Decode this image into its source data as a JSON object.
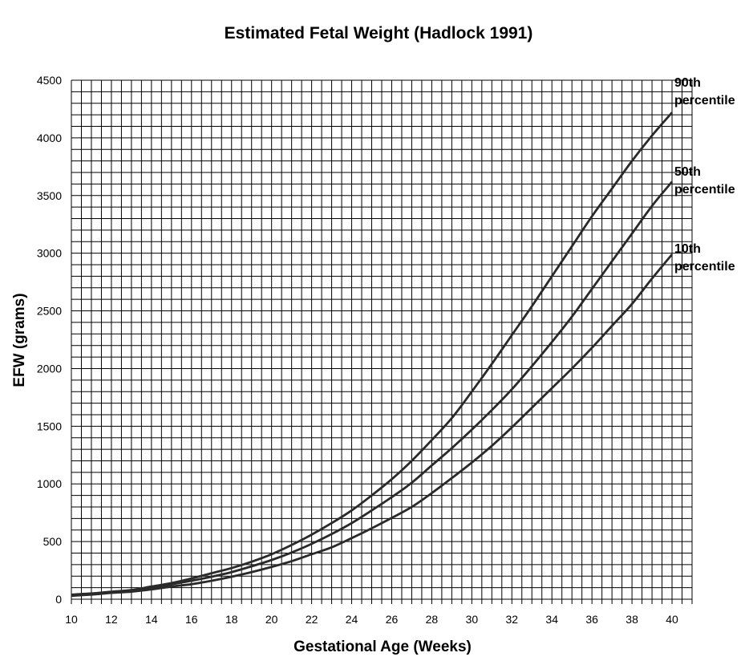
{
  "chart_data": {
    "type": "line",
    "title": "Estimated Fetal Weight (Hadlock 1991)",
    "xlabel": "Gestational Age (Weeks)",
    "ylabel": "EFW (grams)",
    "xlim": [
      10,
      40
    ],
    "ylim": [
      0,
      4500
    ],
    "x_ticks": [
      10,
      12,
      14,
      16,
      18,
      20,
      22,
      24,
      26,
      28,
      30,
      32,
      34,
      36,
      38,
      40
    ],
    "y_ticks": [
      0,
      500,
      1000,
      1500,
      2000,
      2500,
      3000,
      3500,
      4000,
      4500
    ],
    "grid": true,
    "x": [
      10,
      11,
      12,
      13,
      14,
      15,
      16,
      17,
      18,
      19,
      20,
      21,
      22,
      23,
      24,
      25,
      26,
      27,
      28,
      29,
      30,
      31,
      32,
      33,
      34,
      35,
      36,
      37,
      38,
      39,
      40
    ],
    "series": [
      {
        "name": "90th percentile",
        "label_line1": "90th",
        "label_line2": "percentile",
        "values": [
          40,
          50,
          65,
          80,
          110,
          140,
          180,
          225,
          270,
          325,
          390,
          470,
          560,
          660,
          770,
          900,
          1040,
          1200,
          1380,
          1570,
          1800,
          2040,
          2290,
          2540,
          2800,
          3060,
          3320,
          3560,
          3800,
          4020,
          4220
        ]
      },
      {
        "name": "50th percentile",
        "label_line1": "50th",
        "label_line2": "percentile",
        "values": [
          35,
          45,
          60,
          75,
          100,
          130,
          160,
          195,
          235,
          285,
          340,
          405,
          480,
          565,
          660,
          770,
          885,
          1010,
          1160,
          1310,
          1470,
          1640,
          1820,
          2020,
          2230,
          2450,
          2690,
          2930,
          3170,
          3410,
          3620
        ]
      },
      {
        "name": "10th percentile",
        "label_line1": "10th",
        "label_line2": "percentile",
        "values": [
          30,
          40,
          55,
          65,
          85,
          110,
          130,
          160,
          195,
          235,
          280,
          330,
          390,
          450,
          530,
          615,
          705,
          800,
          920,
          1050,
          1185,
          1330,
          1490,
          1660,
          1830,
          2000,
          2180,
          2370,
          2560,
          2780,
          2990
        ]
      }
    ]
  }
}
